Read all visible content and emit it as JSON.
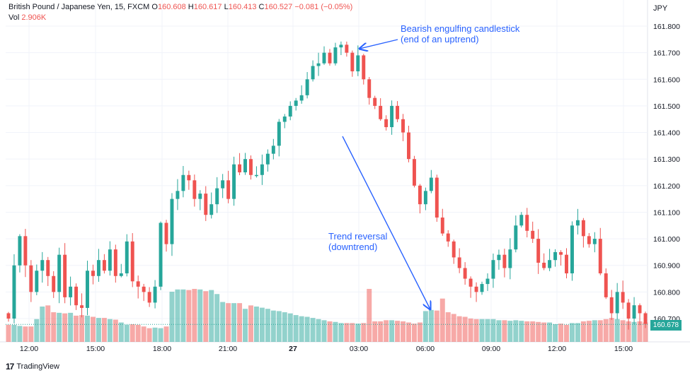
{
  "header": {
    "symbol": "British Pound / Japanese Yen, 15, FXCM",
    "o_label": "O",
    "o_value": "160.608",
    "h_label": "H",
    "h_value": "160.617",
    "l_label": "L",
    "l_value": "160.413",
    "c_label": "C",
    "c_value": "160.527",
    "change": "−0.081 (−0.05%)",
    "vol_label": "Vol",
    "vol_value": "2.906K"
  },
  "currency_label": "JPY",
  "last_price_label": "160.678",
  "brand": {
    "name": "TradingView"
  },
  "annotations": {
    "engulfing_line1": "Bearish engulfing candlestick",
    "engulfing_line2": "(end of an uptrend)",
    "reversal_line1": "Trend reversal",
    "reversal_line2": "(downtrend)"
  },
  "colors": {
    "up": "#26a69a",
    "down": "#ef5350",
    "annotation": "#2962ff"
  },
  "chart_data": {
    "type": "candlestick",
    "title": "British Pound / Japanese Yen, 15, FXCM",
    "y_ticks": [
      "161.800",
      "161.700",
      "161.600",
      "161.500",
      "161.400",
      "161.300",
      "161.200",
      "161.100",
      "161.000",
      "160.900",
      "160.800",
      "160.700"
    ],
    "x_ticks": [
      "12:00",
      "15:00",
      "18:00",
      "21:00",
      "27",
      "03:00",
      "06:00",
      "09:00",
      "12:00",
      "15:00"
    ],
    "ylim": [
      160.67,
      161.84
    ],
    "grid": true,
    "closes": [
      160.7,
      160.9,
      161.01,
      160.9,
      160.8,
      160.88,
      160.92,
      160.86,
      160.8,
      160.94,
      160.78,
      160.82,
      160.75,
      160.74,
      160.88,
      160.86,
      160.92,
      160.88,
      160.96,
      160.86,
      160.87,
      160.99,
      160.84,
      160.82,
      160.8,
      160.76,
      160.82,
      161.06,
      160.98,
      161.15,
      161.18,
      161.24,
      161.22,
      161.15,
      161.17,
      161.09,
      161.13,
      161.19,
      161.22,
      161.15,
      161.28,
      161.25,
      161.3,
      161.24,
      161.24,
      161.28,
      161.32,
      161.35,
      161.44,
      161.46,
      161.5,
      161.52,
      161.54,
      161.6,
      161.65,
      161.66,
      161.7,
      161.66,
      161.72,
      161.73,
      161.7,
      161.63,
      161.69,
      161.6,
      161.53,
      161.5,
      161.45,
      161.42,
      161.5,
      161.45,
      161.4,
      161.3,
      161.2,
      161.13,
      161.18,
      161.23,
      161.08,
      161.02,
      160.99,
      160.93,
      160.89,
      160.85,
      160.82,
      160.8,
      160.83,
      160.85,
      160.92,
      160.94,
      160.89,
      160.96,
      161.05,
      161.09,
      161.03,
      161.0,
      160.91,
      160.89,
      160.92,
      160.95,
      160.94,
      160.87,
      161.05,
      161.07,
      161.01,
      160.98,
      161.0,
      160.87,
      160.78,
      160.72,
      160.8,
      160.76,
      160.7,
      160.75,
      160.72,
      160.68
    ],
    "volume_scale_note": "relative bar heights",
    "volumes": [
      30,
      30,
      28,
      27,
      27,
      40,
      62,
      64,
      52,
      51,
      50,
      51,
      46,
      47,
      46,
      44,
      42,
      42,
      40,
      39,
      34,
      30,
      31,
      30,
      27,
      24,
      25,
      24,
      27,
      88,
      92,
      92,
      91,
      93,
      92,
      89,
      91,
      84,
      70,
      68,
      68,
      68,
      58,
      64,
      62,
      60,
      58,
      55,
      54,
      52,
      50,
      47,
      45,
      44,
      42,
      40,
      38,
      36,
      35,
      33,
      33,
      33,
      32,
      33,
      93,
      36,
      36,
      38,
      38,
      37,
      36,
      34,
      32,
      34,
      54,
      56,
      55,
      76,
      52,
      49,
      45,
      44,
      41,
      40,
      40,
      40,
      40,
      38,
      38,
      37,
      38,
      37,
      36,
      36,
      35,
      34,
      34,
      31,
      32,
      30,
      33,
      33,
      36,
      37,
      38,
      38,
      40,
      42,
      40,
      38,
      36,
      35,
      36,
      34
    ]
  }
}
